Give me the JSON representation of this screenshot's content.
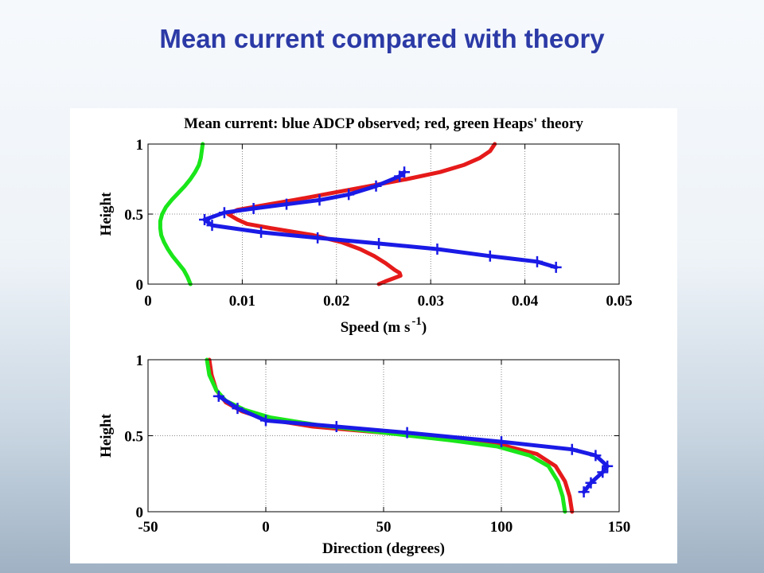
{
  "slide": {
    "title": "Mean current compared with theory"
  },
  "colors": {
    "title": "#2b3aa6",
    "observed": "#1a1ae6",
    "theory_red": "#e61a1a",
    "theory_green": "#1ae61a"
  },
  "chart_data": [
    {
      "type": "line",
      "title": "Mean current: blue ADCP observed; red, green Heaps' theory",
      "xlabel": "Speed (m s",
      "xlabel_sup": "-1",
      "xlabel_end": ")",
      "ylabel": "Height",
      "xlim": [
        0,
        0.05
      ],
      "ylim": [
        0,
        1
      ],
      "grid": true,
      "xticks": [
        {
          "value": 0,
          "label": "0"
        },
        {
          "value": 0.01,
          "label": "0.01"
        },
        {
          "value": 0.02,
          "label": "0.02"
        },
        {
          "value": 0.03,
          "label": "0.03"
        },
        {
          "value": 0.04,
          "label": "0.04"
        },
        {
          "value": 0.05,
          "label": "0.05"
        }
      ],
      "yticks": [
        {
          "value": 0,
          "label": "0"
        },
        {
          "value": 0.5,
          "label": "0.5"
        },
        {
          "value": 1,
          "label": "1"
        }
      ],
      "series": [
        {
          "color": "#1ae61a",
          "marker": false,
          "points": [
            [
              0.0045,
              0
            ],
            [
              0.0042,
              0.05
            ],
            [
              0.0038,
              0.1
            ],
            [
              0.0032,
              0.15
            ],
            [
              0.0026,
              0.2
            ],
            [
              0.0021,
              0.25
            ],
            [
              0.0017,
              0.3
            ],
            [
              0.0014,
              0.35
            ],
            [
              0.0013,
              0.4
            ],
            [
              0.0013,
              0.45
            ],
            [
              0.0015,
              0.5
            ],
            [
              0.0019,
              0.55
            ],
            [
              0.0025,
              0.6
            ],
            [
              0.0032,
              0.65
            ],
            [
              0.0039,
              0.7
            ],
            [
              0.0045,
              0.75
            ],
            [
              0.005,
              0.8
            ],
            [
              0.0054,
              0.85
            ],
            [
              0.0056,
              0.9
            ],
            [
              0.0057,
              0.95
            ],
            [
              0.0058,
              1
            ]
          ]
        },
        {
          "color": "#e61a1a",
          "marker": false,
          "points": [
            [
              0.0245,
              0
            ],
            [
              0.0252,
              0.02
            ],
            [
              0.026,
              0.04
            ],
            [
              0.0268,
              0.06
            ],
            [
              0.0267,
              0.08
            ],
            [
              0.0262,
              0.1
            ],
            [
              0.0252,
              0.15
            ],
            [
              0.024,
              0.2
            ],
            [
              0.0225,
              0.25
            ],
            [
              0.0205,
              0.3
            ],
            [
              0.0175,
              0.35
            ],
            [
              0.013,
              0.4
            ],
            [
              0.0105,
              0.43
            ],
            [
              0.0095,
              0.46
            ],
            [
              0.0085,
              0.5
            ],
            [
              0.0095,
              0.53
            ],
            [
              0.012,
              0.56
            ],
            [
              0.0155,
              0.6
            ],
            [
              0.0195,
              0.65
            ],
            [
              0.0235,
              0.7
            ],
            [
              0.0275,
              0.75
            ],
            [
              0.031,
              0.8
            ],
            [
              0.0335,
              0.85
            ],
            [
              0.0352,
              0.9
            ],
            [
              0.0363,
              0.95
            ],
            [
              0.0368,
              1
            ]
          ]
        },
        {
          "color": "#1a1ae6",
          "marker": true,
          "points": [
            [
              0.0433,
              0.12
            ],
            [
              0.0413,
              0.16
            ],
            [
              0.0363,
              0.2
            ],
            [
              0.0307,
              0.25
            ],
            [
              0.0245,
              0.29
            ],
            [
              0.018,
              0.33
            ],
            [
              0.012,
              0.37
            ],
            [
              0.0068,
              0.42
            ],
            [
              0.006,
              0.46
            ],
            [
              0.0081,
              0.51
            ],
            [
              0.0112,
              0.54
            ],
            [
              0.0147,
              0.57
            ],
            [
              0.0182,
              0.6
            ],
            [
              0.0213,
              0.64
            ],
            [
              0.0242,
              0.7
            ],
            [
              0.0267,
              0.77
            ],
            [
              0.0272,
              0.8
            ]
          ]
        }
      ]
    },
    {
      "type": "line",
      "title": "",
      "xlabel": "Direction (degrees)",
      "ylabel": "Height",
      "xlim": [
        -50,
        150
      ],
      "ylim": [
        0,
        1
      ],
      "grid": true,
      "xticks": [
        {
          "value": -50,
          "label": "-50"
        },
        {
          "value": 0,
          "label": "0"
        },
        {
          "value": 50,
          "label": "50"
        },
        {
          "value": 100,
          "label": "100"
        },
        {
          "value": 150,
          "label": "150"
        }
      ],
      "yticks": [
        {
          "value": 0,
          "label": "0"
        },
        {
          "value": 0.5,
          "label": "0.5"
        },
        {
          "value": 1,
          "label": "1"
        }
      ],
      "series": [
        {
          "color": "#e61a1a",
          "marker": false,
          "points": [
            [
              -24,
              1
            ],
            [
              -23,
              0.9
            ],
            [
              -21,
              0.8
            ],
            [
              -17,
              0.72
            ],
            [
              -10,
              0.66
            ],
            [
              0,
              0.61
            ],
            [
              20,
              0.56
            ],
            [
              50,
              0.52
            ],
            [
              80,
              0.48
            ],
            [
              100,
              0.44
            ],
            [
              115,
              0.38
            ],
            [
              123,
              0.3
            ],
            [
              127,
              0.2
            ],
            [
              129,
              0.1
            ],
            [
              130,
              0
            ]
          ]
        },
        {
          "color": "#1ae61a",
          "marker": false,
          "points": [
            [
              -25,
              1
            ],
            [
              -24,
              0.9
            ],
            [
              -21,
              0.8
            ],
            [
              -17,
              0.73
            ],
            [
              -9,
              0.67
            ],
            [
              2,
              0.62
            ],
            [
              22,
              0.57
            ],
            [
              50,
              0.52
            ],
            [
              78,
              0.47
            ],
            [
              98,
              0.43
            ],
            [
              112,
              0.37
            ],
            [
              120,
              0.3
            ],
            [
              124,
              0.2
            ],
            [
              126,
              0.1
            ],
            [
              127,
              0
            ]
          ]
        },
        {
          "color": "#1a1ae6",
          "marker": true,
          "points": [
            [
              -20,
              0.76
            ],
            [
              -12,
              0.68
            ],
            [
              0,
              0.6
            ],
            [
              30,
              0.56
            ],
            [
              60,
              0.52
            ],
            [
              100,
              0.46
            ],
            [
              130,
              0.41
            ],
            [
              140,
              0.37
            ],
            [
              145,
              0.3
            ],
            [
              143,
              0.26
            ],
            [
              138,
              0.19
            ],
            [
              135,
              0.13
            ]
          ]
        }
      ]
    }
  ]
}
